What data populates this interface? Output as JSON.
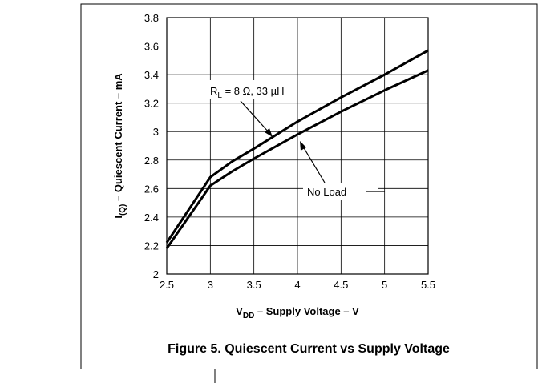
{
  "chart_data": {
    "type": "line",
    "title": "Figure 5. Quiescent Current vs Supply Voltage",
    "x_label": {
      "main": "V",
      "sub": "DD",
      "rest": " – Supply Voltage – V"
    },
    "y_label": {
      "main": "I",
      "sub": "(Q)",
      "rest": " – Quiescent Current – mA"
    },
    "annotations": [
      {
        "main": "R",
        "sub": "L",
        "rest": " = 8 Ω, 33 µH"
      },
      {
        "main": "No Load"
      }
    ],
    "x": [
      2.5,
      2.75,
      3.0,
      3.25,
      3.5,
      4.0,
      4.5,
      5.0,
      5.5
    ],
    "series": [
      {
        "color": "#000000",
        "values": [
          2.22,
          2.45,
          2.68,
          2.79,
          2.88,
          3.07,
          3.24,
          3.4,
          3.57
        ]
      },
      {
        "color": "#000000",
        "values": [
          2.18,
          2.4,
          2.62,
          2.72,
          2.81,
          2.98,
          3.14,
          3.29,
          3.43
        ]
      }
    ],
    "xlim": [
      2.5,
      5.5
    ],
    "xticks": [
      2.5,
      3,
      3.5,
      4,
      4.5,
      5,
      5.5
    ],
    "ylim": [
      2,
      3.8
    ],
    "yticks": [
      2,
      2.2,
      2.4,
      2.6,
      2.8,
      3,
      3.2,
      3.4,
      3.6,
      3.8
    ],
    "grid": true
  }
}
